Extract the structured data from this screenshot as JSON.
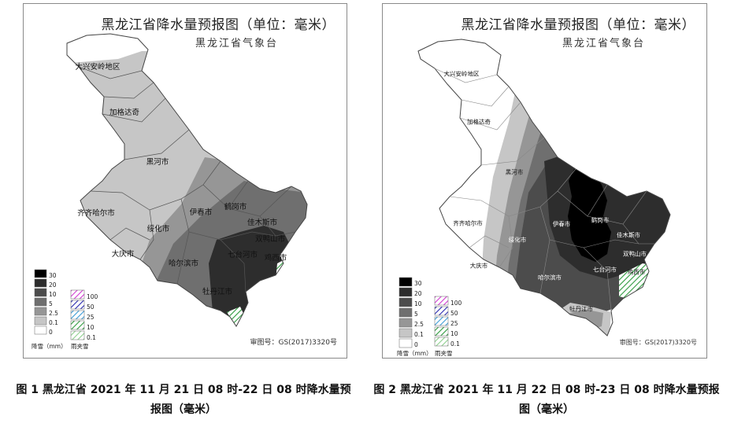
{
  "maps": [
    {
      "title": "黑龙江省降水量预报图（单位：毫米）",
      "subtitle": "黑龙江省气象台",
      "approval_number": "审图号：GS(2017)3320号",
      "cities": {
        "daxinganling": "大兴安岭地区",
        "jiagedaqi": "加格达奇",
        "heihe": "黑河市",
        "qiqihar": "齐齐哈尔市",
        "suihua": "绥化市",
        "yichun": "伊春市",
        "hegang": "鹤岗市",
        "jiamusi": "佳木斯市",
        "shuangyashan": "双鸭山市",
        "daqing": "大庆市",
        "harbin": "哈尔滨市",
        "qitaihe": "七台河市",
        "jixi": "鸡西市",
        "mudanjiang": "牡丹江市"
      },
      "legend": {
        "rain_levels": [
          "30",
          "20",
          "10",
          "5",
          "2.5",
          "0.1",
          "0"
        ],
        "rain_caption": "降雪（mm）",
        "sleet_levels": [
          "100",
          "50",
          "25",
          "10",
          "0.1"
        ],
        "sleet_caption": "雨夹雪"
      }
    },
    {
      "title": "黑龙江省降水量预报图（单位：毫米）",
      "subtitle": "黑龙江省气象台",
      "approval_number": "审图号：GS(2017)3320号",
      "cities": {
        "daxinganling": "大兴安岭地区",
        "jiagedaqi": "加格达奇",
        "heihe": "黑河市",
        "qiqihar": "齐齐哈尔市",
        "suihua": "绥化市",
        "yichun": "伊春市",
        "hegang": "鹤岗市",
        "jiamusi": "佳木斯市",
        "shuangyashan": "双鸭山市",
        "daqing": "大庆市",
        "harbin": "哈尔滨市",
        "qitaihe": "七台河市",
        "jixi": "鸡西市",
        "mudanjiang": "牡丹江市"
      },
      "legend": {
        "rain_levels": [
          "30",
          "20",
          "10",
          "5",
          "2.5",
          "0.1",
          "0"
        ],
        "rain_caption": "降雪（mm）",
        "sleet_levels": [
          "100",
          "50",
          "25",
          "10",
          "0.1"
        ],
        "sleet_caption": "雨夹雪"
      }
    }
  ],
  "colors": {
    "lv_30": "#000000",
    "lv_20": "#2d2d2d",
    "lv_10": "#4c4c4c",
    "lv_5": "#6f6f6f",
    "lv_2_5": "#969696",
    "lv_0_1": "#c6c6c6",
    "lv_0": "#ffffff",
    "sleet_100": "#d23cd2",
    "sleet_50": "#2b2bb0",
    "sleet_25": "#3b9bd6",
    "sleet_10": "#2e9a3e",
    "sleet_0_1": "#8fd08f"
  },
  "captions": [
    "图 1  黑龙江省 2021 年 11 月 21 日 08 时-22 日 08 时降水量预报图（毫米）",
    "图 2  黑龙江省 2021 年 11 月 22 日 08 时-23 日 08 时降水量预报图（毫米）"
  ]
}
